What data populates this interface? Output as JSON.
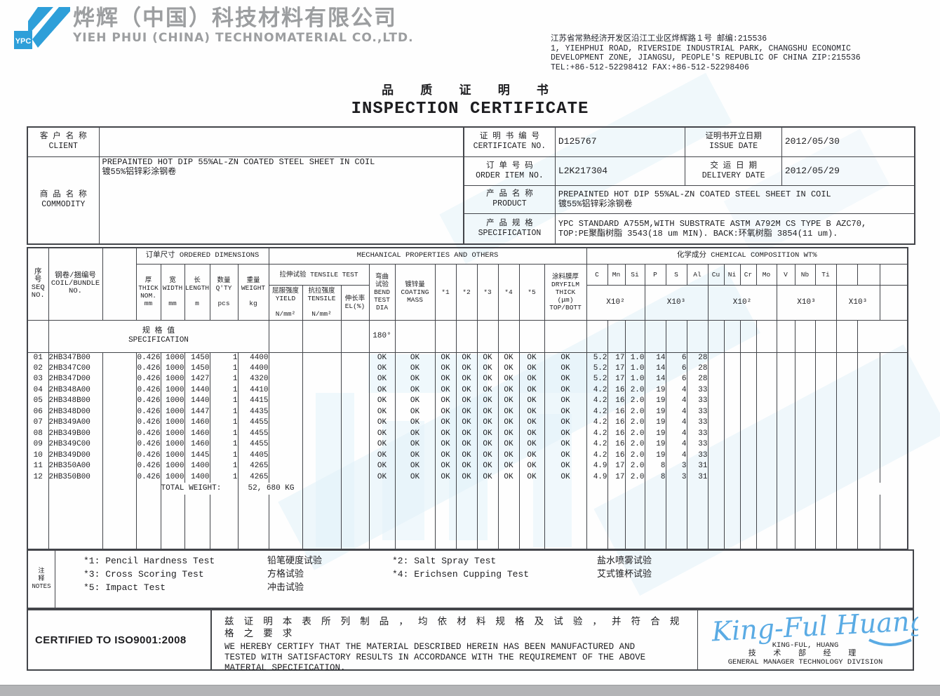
{
  "page": {
    "logo_text": "YPC",
    "company_cn": "烨辉（中国）科技材料有限公司",
    "company_en": "YIEH PHUI (CHINA) TECHNOMATERIAL CO.,LTD.",
    "address": "江苏省常熟经济开发区沿江工业区烨辉路１号 邮编:215536\n1, YIEHPHUI ROAD, RIVERSIDE INDUSTRIAL PARK, CHANGSHU ECONOMIC\nDEVELOPMENT ZONE, JIANGSU, PEOPLE'S REPUBLIC OF CHINA ZIP:215536\nTEL:+86-512-52298412  FAX:+86-512-52298406",
    "title_cn": "品 质 证 明 书",
    "title_en": "INSPECTION CERTIFICATE"
  },
  "colors": {
    "logo_blue": "#2e9fd9",
    "signature_blue": "#5aabe4",
    "watermark_blue": "#ddeff8",
    "company_gray": "#9c9ea0",
    "scan_bar_gray": "#b3b4b6"
  },
  "info": {
    "client_label": "客 户 名 称\nCLIENT",
    "client_value": "",
    "commodity_label": "商 品 名 称\nCOMMODITY",
    "commodity_value": "PREPAINTED HOT DIP 55%AL-ZN COATED STEEL SHEET IN COIL\n镀55%铝锌彩涂钢卷",
    "certificate_label": "证 明 书 编 号\nCERTIFICATE NO.",
    "certificate_value": "D125767",
    "issue_label": "证明书开立日期\nISSUE DATE",
    "issue_value": "2012/05/30",
    "order_label": "订 单 号 码\nORDER ITEM NO.",
    "order_value": "L2K217304",
    "delivery_label": "交 运 日 期\nDELIVERY DATE",
    "delivery_value": "2012/05/29",
    "product_label": "产 品 名 称\nPRODUCT",
    "product_value": "PREPAINTED HOT DIP 55%AL-ZN COATED STEEL SHEET IN COIL\n镀55%铝锌彩涂钢卷",
    "spec_label": "产 品 规 格\nSPECIFICATION",
    "spec_value": "YPC STANDARD A755M,WITH SUBSTRATE ASTM A792M CS TYPE B AZC70,\nTOP:PE聚酯树脂 3543(18 um MIN).  BACK:环氧树脂 3854(11 um)."
  },
  "table": {
    "headers": {
      "seq": "序\n号\nSEQ\nNO.",
      "coil": "钢卷/捆编号\nCOIL/BUNDLE\nNO.",
      "dims_group": "订单尺寸 ORDERED DIMENSIONS",
      "mech_group": "MECHANICAL PROPERTIES AND OTHERS",
      "chem_group": "化学成分 CHEMICAL COMPOSITION WT%",
      "thick": "厚\nTHICK\nNOM.\nmm",
      "width": "宽\nWIDTH\n\nmm",
      "length": "长\nLENGTH\n\nm",
      "qty": "数量\nQ'TY\n\npcs",
      "weight": "重量\nWEIGHT\n\nkg",
      "tensile_group": "拉伸试验 TENSILE TEST",
      "yield": "屈服强度\nYIELD\n\nN/mm²",
      "tensile": "抗拉强度\nTENSILE\n\nN/mm²",
      "el": "伸长率\nEL(%)",
      "bend": "弯曲\n试验\nBEND\nTEST\nDIA",
      "coating": "镀锌量\nCOATING\nMASS",
      "star1": "*1",
      "star2": "*2",
      "star3": "*3",
      "star4": "*4",
      "star5": "*5",
      "dryfilm": "涂料膜厚\nDRYFILM\nTHICK\n(μm)\nTOP/BOTT",
      "elements": [
        "C",
        "Mn",
        "Si",
        "P",
        "S",
        "Al",
        "Cu",
        "Ni",
        "Cr",
        "Mo",
        "V",
        "Nb",
        "Ti",
        "",
        "",
        ""
      ],
      "multipliers": [
        {
          "label": "X10²"
        },
        {
          "label": "X10³"
        },
        {
          "label": "X10²"
        },
        {
          "label": "X10³"
        },
        {
          "label": "X10³"
        },
        {
          "label": ""
        }
      ]
    },
    "spec_row": {
      "label": "规  格  值\nSPECIFICATION",
      "bend": "180°"
    },
    "rows": [
      [
        "01",
        "2HB347B00",
        "0.426",
        "1000",
        "1450",
        "1",
        "4400",
        "OK",
        "OK",
        "OK",
        "OK",
        "OK",
        "OK",
        "OK",
        "OK",
        "5.2",
        "17",
        "1.0",
        "14",
        "6",
        "28"
      ],
      [
        "02",
        "2HB347C00",
        "0.426",
        "1000",
        "1450",
        "1",
        "4400",
        "OK",
        "OK",
        "OK",
        "OK",
        "OK",
        "OK",
        "OK",
        "OK",
        "5.2",
        "17",
        "1.0",
        "14",
        "6",
        "28"
      ],
      [
        "03",
        "2HB347D00",
        "0.426",
        "1000",
        "1427",
        "1",
        "4320",
        "OK",
        "OK",
        "OK",
        "OK",
        "OK",
        "OK",
        "OK",
        "OK",
        "5.2",
        "17",
        "1.0",
        "14",
        "6",
        "28"
      ],
      [
        "04",
        "2HB348A00",
        "0.426",
        "1000",
        "1440",
        "1",
        "4410",
        "OK",
        "OK",
        "OK",
        "OK",
        "OK",
        "OK",
        "OK",
        "OK",
        "4.2",
        "16",
        "2.0",
        "19",
        "4",
        "33"
      ],
      [
        "05",
        "2HB348B00",
        "0.426",
        "1000",
        "1440",
        "1",
        "4415",
        "OK",
        "OK",
        "OK",
        "OK",
        "OK",
        "OK",
        "OK",
        "OK",
        "4.2",
        "16",
        "2.0",
        "19",
        "4",
        "33"
      ],
      [
        "06",
        "2HB348D00",
        "0.426",
        "1000",
        "1447",
        "1",
        "4435",
        "OK",
        "OK",
        "OK",
        "OK",
        "OK",
        "OK",
        "OK",
        "OK",
        "4.2",
        "16",
        "2.0",
        "19",
        "4",
        "33"
      ],
      [
        "07",
        "2HB349A00",
        "0.426",
        "1000",
        "1460",
        "1",
        "4455",
        "OK",
        "OK",
        "OK",
        "OK",
        "OK",
        "OK",
        "OK",
        "OK",
        "4.2",
        "16",
        "2.0",
        "19",
        "4",
        "33"
      ],
      [
        "08",
        "2HB349B00",
        "0.426",
        "1000",
        "1460",
        "1",
        "4455",
        "OK",
        "OK",
        "OK",
        "OK",
        "OK",
        "OK",
        "OK",
        "OK",
        "4.2",
        "16",
        "2.0",
        "19",
        "4",
        "33"
      ],
      [
        "09",
        "2HB349C00",
        "0.426",
        "1000",
        "1460",
        "1",
        "4455",
        "OK",
        "OK",
        "OK",
        "OK",
        "OK",
        "OK",
        "OK",
        "OK",
        "4.2",
        "16",
        "2.0",
        "19",
        "4",
        "33"
      ],
      [
        "10",
        "2HB349D00",
        "0.426",
        "1000",
        "1445",
        "1",
        "4405",
        "OK",
        "OK",
        "OK",
        "OK",
        "OK",
        "OK",
        "OK",
        "OK",
        "4.2",
        "16",
        "2.0",
        "19",
        "4",
        "33"
      ],
      [
        "11",
        "2HB350A00",
        "0.426",
        "1000",
        "1400",
        "1",
        "4265",
        "OK",
        "OK",
        "OK",
        "OK",
        "OK",
        "OK",
        "OK",
        "OK",
        "4.9",
        "17",
        "2.0",
        "8",
        "3",
        "31"
      ],
      [
        "12",
        "2HB350B00",
        "0.426",
        "1000",
        "1400",
        "1",
        "4265",
        "OK",
        "OK",
        "OK",
        "OK",
        "OK",
        "OK",
        "OK",
        "OK",
        "4.9",
        "17",
        "2.0",
        "8",
        "3",
        "31"
      ]
    ],
    "total_label": "TOTAL WEIGHT:",
    "total_value": "52, 680 KG"
  },
  "notes": {
    "label": "注\n释\nNOTES",
    "items": [
      {
        "en": "*1: Pencil Hardness Test",
        "cn": "铅笔硬度试验"
      },
      {
        "en": "*2: Salt Spray Test",
        "cn": "盐水喷雾试验"
      },
      {
        "en": "*3: Cross Scoring Test",
        "cn": "方格试验"
      },
      {
        "en": "*4: Erichsen Cupping Test",
        "cn": "艾式锥杯试验"
      },
      {
        "en": "*5: Impact Test",
        "cn": "冲击试验"
      }
    ]
  },
  "footer": {
    "iso": "CERTIFIED TO ISO9001:2008",
    "cert_cn": "兹 证 明 本 表 所 列 制 品 ， 均 依 材 料 规 格 及 试 验 ， 并 符 合 规 格 之 要 求",
    "cert_en": "WE HEREBY CERTIFY THAT THE MATERIAL  DESCRIBED  HEREIN  HAS BEEN  MANUFACTURED  AND\nTESTED WITH SATISFACTORY RESULTS IN ACCORDANCE WITH THE REQUIREMENT  OF  THE  ABOVE\nMATERIAL SPECIFICATION.",
    "signature_script": "King-Ful Huang",
    "signatory_name": "KING-FUL, HUANG",
    "signatory_title_cn": "技 术 部 经 理",
    "signatory_title_en": "GENERAL MANAGER TECHNOLOGY DIVISION"
  }
}
